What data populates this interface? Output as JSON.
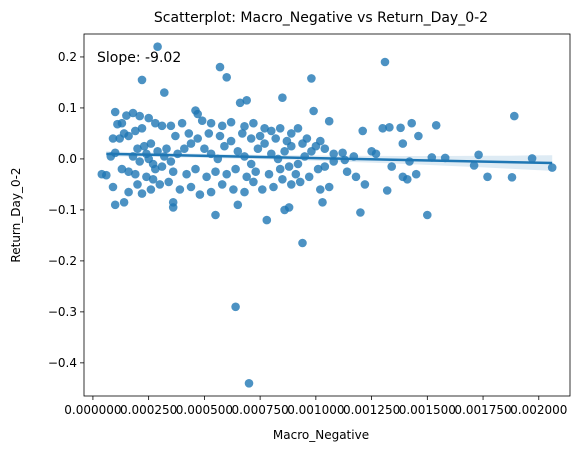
{
  "chart_data": {
    "type": "scatter",
    "title": "Scatterplot: Macro_Negative vs Return_Day_0-2",
    "xlabel": "Macro_Negative",
    "ylabel": "Return_Day_0-2",
    "annotation": "Slope: -9.02",
    "xlim": [
      -4e-05,
      0.00214
    ],
    "ylim": [
      -0.465,
      0.245
    ],
    "x_ticks": [
      0,
      0.00025,
      0.0005,
      0.00075,
      0.001,
      0.00125,
      0.0015,
      0.00175,
      0.002
    ],
    "x_tick_labels": [
      "0.000000",
      "0.000250",
      "0.000500",
      "0.000750",
      "0.001000",
      "0.001250",
      "0.001500",
      "0.001750",
      "0.002000"
    ],
    "y_ticks": [
      -0.4,
      -0.3,
      -0.2,
      -0.1,
      0.0,
      0.1,
      0.2
    ],
    "y_tick_labels": [
      "−0.4",
      "−0.3",
      "−0.2",
      "−0.1",
      "0.0",
      "0.1",
      "0.2"
    ],
    "grid": false,
    "color": "#1f77b4",
    "regression": {
      "slope": -9.02,
      "intercept": 0.0105,
      "x_range": [
        6e-05,
        0.00206
      ]
    },
    "points": [
      {
        "x": 0.00029,
        "y": 0.22
      },
      {
        "x": 0.00057,
        "y": 0.18
      },
      {
        "x": 0.00131,
        "y": 0.19
      },
      {
        "x": 0.00022,
        "y": 0.155
      },
      {
        "x": 0.0006,
        "y": 0.16
      },
      {
        "x": 0.00098,
        "y": 0.158
      },
      {
        "x": 0.00032,
        "y": 0.13
      },
      {
        "x": 0.00066,
        "y": 0.11
      },
      {
        "x": 0.00069,
        "y": 0.115
      },
      {
        "x": 0.00046,
        "y": 0.095
      },
      {
        "x": 0.00099,
        "y": 0.094
      },
      {
        "x": 0.00085,
        "y": 0.12
      },
      {
        "x": 0.00189,
        "y": 0.084
      },
      {
        "x": 0.00154,
        "y": 0.066
      },
      {
        "x": 0.00143,
        "y": 0.07
      },
      {
        "x": 0.00133,
        "y": 0.062
      },
      {
        "x": 0.0013,
        "y": 0.06
      },
      {
        "x": 0.00138,
        "y": 0.061
      },
      {
        "x": 0.00121,
        "y": 0.055
      },
      {
        "x": 0.00146,
        "y": 0.045
      },
      {
        "x": 0.00139,
        "y": 0.03
      },
      {
        "x": 0.00127,
        "y": 0.01
      },
      {
        "x": 0.00125,
        "y": 0.015
      },
      {
        "x": 0.00158,
        "y": 0.002
      },
      {
        "x": 0.00152,
        "y": 0.003
      },
      {
        "x": 0.00142,
        "y": -0.005
      },
      {
        "x": 0.00134,
        "y": -0.015
      },
      {
        "x": 0.00139,
        "y": -0.035
      },
      {
        "x": 0.00141,
        "y": -0.04
      },
      {
        "x": 0.00145,
        "y": -0.03
      },
      {
        "x": 0.00132,
        "y": -0.062
      },
      {
        "x": 0.00122,
        "y": -0.05
      },
      {
        "x": 0.00118,
        "y": -0.035
      },
      {
        "x": 0.00114,
        "y": -0.025
      },
      {
        "x": 0.00171,
        "y": -0.013
      },
      {
        "x": 0.00173,
        "y": 0.008
      },
      {
        "x": 0.00177,
        "y": -0.035
      },
      {
        "x": 0.00188,
        "y": -0.036
      },
      {
        "x": 0.00197,
        "y": 0.001
      },
      {
        "x": 0.00206,
        "y": -0.017
      },
      {
        "x": 0.0015,
        "y": -0.11
      },
      {
        "x": 0.0012,
        "y": -0.105
      },
      {
        "x": 0.00103,
        "y": -0.085
      },
      {
        "x": 0.00094,
        "y": -0.165
      },
      {
        "x": 0.00088,
        "y": -0.095
      },
      {
        "x": 0.00086,
        "y": -0.1
      },
      {
        "x": 0.00078,
        "y": -0.12
      },
      {
        "x": 0.00055,
        "y": -0.11
      },
      {
        "x": 0.00064,
        "y": -0.29
      },
      {
        "x": 0.0007,
        "y": -0.44
      },
      {
        "x": 0.00065,
        "y": -0.09
      },
      {
        "x": 0.00036,
        "y": -0.085
      },
      {
        "x": 0.00036,
        "y": -0.095
      },
      {
        "x": 0.00014,
        "y": -0.085
      },
      {
        "x": 0.0001,
        "y": -0.09
      },
      {
        "x": 4e-05,
        "y": -0.03
      },
      {
        "x": 6e-05,
        "y": -0.032
      },
      {
        "x": 9e-05,
        "y": -0.055
      },
      {
        "x": 0.00016,
        "y": -0.065
      },
      {
        "x": 0.00022,
        "y": -0.068
      },
      {
        "x": 0.0002,
        "y": -0.05
      },
      {
        "x": 0.00026,
        "y": -0.06
      },
      {
        "x": 8e-05,
        "y": 0.005
      },
      {
        "x": 0.0001,
        "y": 0.012
      },
      {
        "x": 0.00012,
        "y": 0.04
      },
      {
        "x": 0.00014,
        "y": 0.05
      },
      {
        "x": 0.00011,
        "y": 0.068
      },
      {
        "x": 0.00013,
        "y": 0.07
      },
      {
        "x": 9e-05,
        "y": 0.04
      },
      {
        "x": 0.00015,
        "y": 0.085
      },
      {
        "x": 0.0001,
        "y": 0.092
      },
      {
        "x": 0.00018,
        "y": 0.09
      },
      {
        "x": 0.00021,
        "y": 0.084
      },
      {
        "x": 0.00025,
        "y": 0.08
      },
      {
        "x": 0.00028,
        "y": 0.07
      },
      {
        "x": 0.00031,
        "y": 0.065
      },
      {
        "x": 0.00035,
        "y": 0.065
      },
      {
        "x": 0.0004,
        "y": 0.07
      },
      {
        "x": 0.00047,
        "y": 0.088
      },
      {
        "x": 0.00049,
        "y": 0.075
      },
      {
        "x": 0.00053,
        "y": 0.07
      },
      {
        "x": 0.00058,
        "y": 0.065
      },
      {
        "x": 0.00062,
        "y": 0.072
      },
      {
        "x": 0.00068,
        "y": 0.064
      },
      {
        "x": 0.00072,
        "y": 0.07
      },
      {
        "x": 0.00077,
        "y": 0.06
      },
      {
        "x": 0.0008,
        "y": 0.055
      },
      {
        "x": 0.00084,
        "y": 0.06
      },
      {
        "x": 0.00089,
        "y": 0.05
      },
      {
        "x": 0.00092,
        "y": 0.06
      },
      {
        "x": 0.00096,
        "y": 0.04
      },
      {
        "x": 0.00102,
        "y": 0.035
      },
      {
        "x": 0.00106,
        "y": 0.074
      },
      {
        "x": 0.00108,
        "y": 0.01
      },
      {
        "x": 0.00112,
        "y": 0.012
      },
      {
        "x": 0.00117,
        "y": 0.005
      },
      {
        "x": 0.00113,
        "y": -0.002
      },
      {
        "x": 0.00108,
        "y": -0.005
      },
      {
        "x": 0.00104,
        "y": -0.015
      },
      {
        "x": 0.00101,
        "y": -0.02
      },
      {
        "x": 0.00106,
        "y": -0.055
      },
      {
        "x": 0.00102,
        "y": -0.06
      },
      {
        "x": 0.00097,
        "y": -0.035
      },
      {
        "x": 0.00093,
        "y": -0.045
      },
      {
        "x": 0.00089,
        "y": -0.05
      },
      {
        "x": 0.00085,
        "y": -0.04
      },
      {
        "x": 0.00081,
        "y": -0.055
      },
      {
        "x": 0.00076,
        "y": -0.06
      },
      {
        "x": 0.00072,
        "y": -0.045
      },
      {
        "x": 0.00068,
        "y": -0.065
      },
      {
        "x": 0.00063,
        "y": -0.06
      },
      {
        "x": 0.00058,
        "y": -0.05
      },
      {
        "x": 0.00053,
        "y": -0.065
      },
      {
        "x": 0.00048,
        "y": -0.07
      },
      {
        "x": 0.00044,
        "y": -0.055
      },
      {
        "x": 0.00039,
        "y": -0.06
      },
      {
        "x": 0.00034,
        "y": -0.045
      },
      {
        "x": 0.0003,
        "y": -0.05
      },
      {
        "x": 0.00027,
        "y": -0.04
      },
      {
        "x": 0.00024,
        "y": -0.035
      },
      {
        "x": 0.00019,
        "y": -0.03
      },
      {
        "x": 0.00016,
        "y": -0.025
      },
      {
        "x": 0.00013,
        "y": -0.02
      },
      {
        "x": 0.0002,
        "y": 0.02
      },
      {
        "x": 0.00023,
        "y": 0.025
      },
      {
        "x": 0.00026,
        "y": 0.03
      },
      {
        "x": 0.00029,
        "y": 0.015
      },
      {
        "x": 0.00032,
        "y": 0.005
      },
      {
        "x": 0.00035,
        "y": -0.005
      },
      {
        "x": 0.00038,
        "y": 0.01
      },
      {
        "x": 0.00041,
        "y": 0.02
      },
      {
        "x": 0.00044,
        "y": 0.03
      },
      {
        "x": 0.00047,
        "y": 0.04
      },
      {
        "x": 0.0005,
        "y": 0.02
      },
      {
        "x": 0.00053,
        "y": 0.01
      },
      {
        "x": 0.00056,
        "y": 0.0
      },
      {
        "x": 0.00059,
        "y": 0.025
      },
      {
        "x": 0.00062,
        "y": 0.035
      },
      {
        "x": 0.00065,
        "y": 0.015
      },
      {
        "x": 0.00068,
        "y": 0.005
      },
      {
        "x": 0.00071,
        "y": -0.01
      },
      {
        "x": 0.00074,
        "y": 0.02
      },
      {
        "x": 0.00077,
        "y": 0.03
      },
      {
        "x": 0.0008,
        "y": 0.01
      },
      {
        "x": 0.00083,
        "y": 0.0
      },
      {
        "x": 0.00086,
        "y": 0.015
      },
      {
        "x": 0.00089,
        "y": 0.025
      },
      {
        "x": 0.00092,
        "y": -0.01
      },
      {
        "x": 0.00095,
        "y": 0.005
      },
      {
        "x": 0.00098,
        "y": 0.015
      },
      {
        "x": 0.00027,
        "y": -0.01
      },
      {
        "x": 0.00025,
        "y": 0.0
      },
      {
        "x": 0.00028,
        "y": -0.02
      },
      {
        "x": 0.00031,
        "y": -0.015
      },
      {
        "x": 0.00024,
        "y": 0.01
      },
      {
        "x": 0.00021,
        "y": -0.005
      },
      {
        "x": 0.00018,
        "y": 0.005
      },
      {
        "x": 0.00033,
        "y": 0.02
      },
      {
        "x": 0.00036,
        "y": -0.025
      },
      {
        "x": 0.00042,
        "y": -0.03
      },
      {
        "x": 0.00046,
        "y": -0.02
      },
      {
        "x": 0.00051,
        "y": -0.035
      },
      {
        "x": 0.00055,
        "y": -0.025
      },
      {
        "x": 0.0006,
        "y": -0.03
      },
      {
        "x": 0.00064,
        "y": -0.02
      },
      {
        "x": 0.00069,
        "y": -0.035
      },
      {
        "x": 0.00073,
        "y": -0.025
      },
      {
        "x": 0.00079,
        "y": -0.03
      },
      {
        "x": 0.00084,
        "y": -0.02
      },
      {
        "x": 0.00088,
        "y": -0.015
      },
      {
        "x": 0.00091,
        "y": -0.03
      },
      {
        "x": 0.00016,
        "y": 0.045
      },
      {
        "x": 0.00019,
        "y": 0.055
      },
      {
        "x": 0.00022,
        "y": 0.06
      },
      {
        "x": 0.00037,
        "y": 0.045
      },
      {
        "x": 0.00043,
        "y": 0.05
      },
      {
        "x": 0.00052,
        "y": 0.05
      },
      {
        "x": 0.00057,
        "y": 0.045
      },
      {
        "x": 0.00067,
        "y": 0.05
      },
      {
        "x": 0.00071,
        "y": 0.04
      },
      {
        "x": 0.00075,
        "y": 0.045
      },
      {
        "x": 0.00082,
        "y": 0.04
      },
      {
        "x": 0.00087,
        "y": 0.035
      },
      {
        "x": 0.00094,
        "y": 0.03
      },
      {
        "x": 0.001,
        "y": 0.025
      },
      {
        "x": 0.00104,
        "y": 0.02
      }
    ]
  }
}
